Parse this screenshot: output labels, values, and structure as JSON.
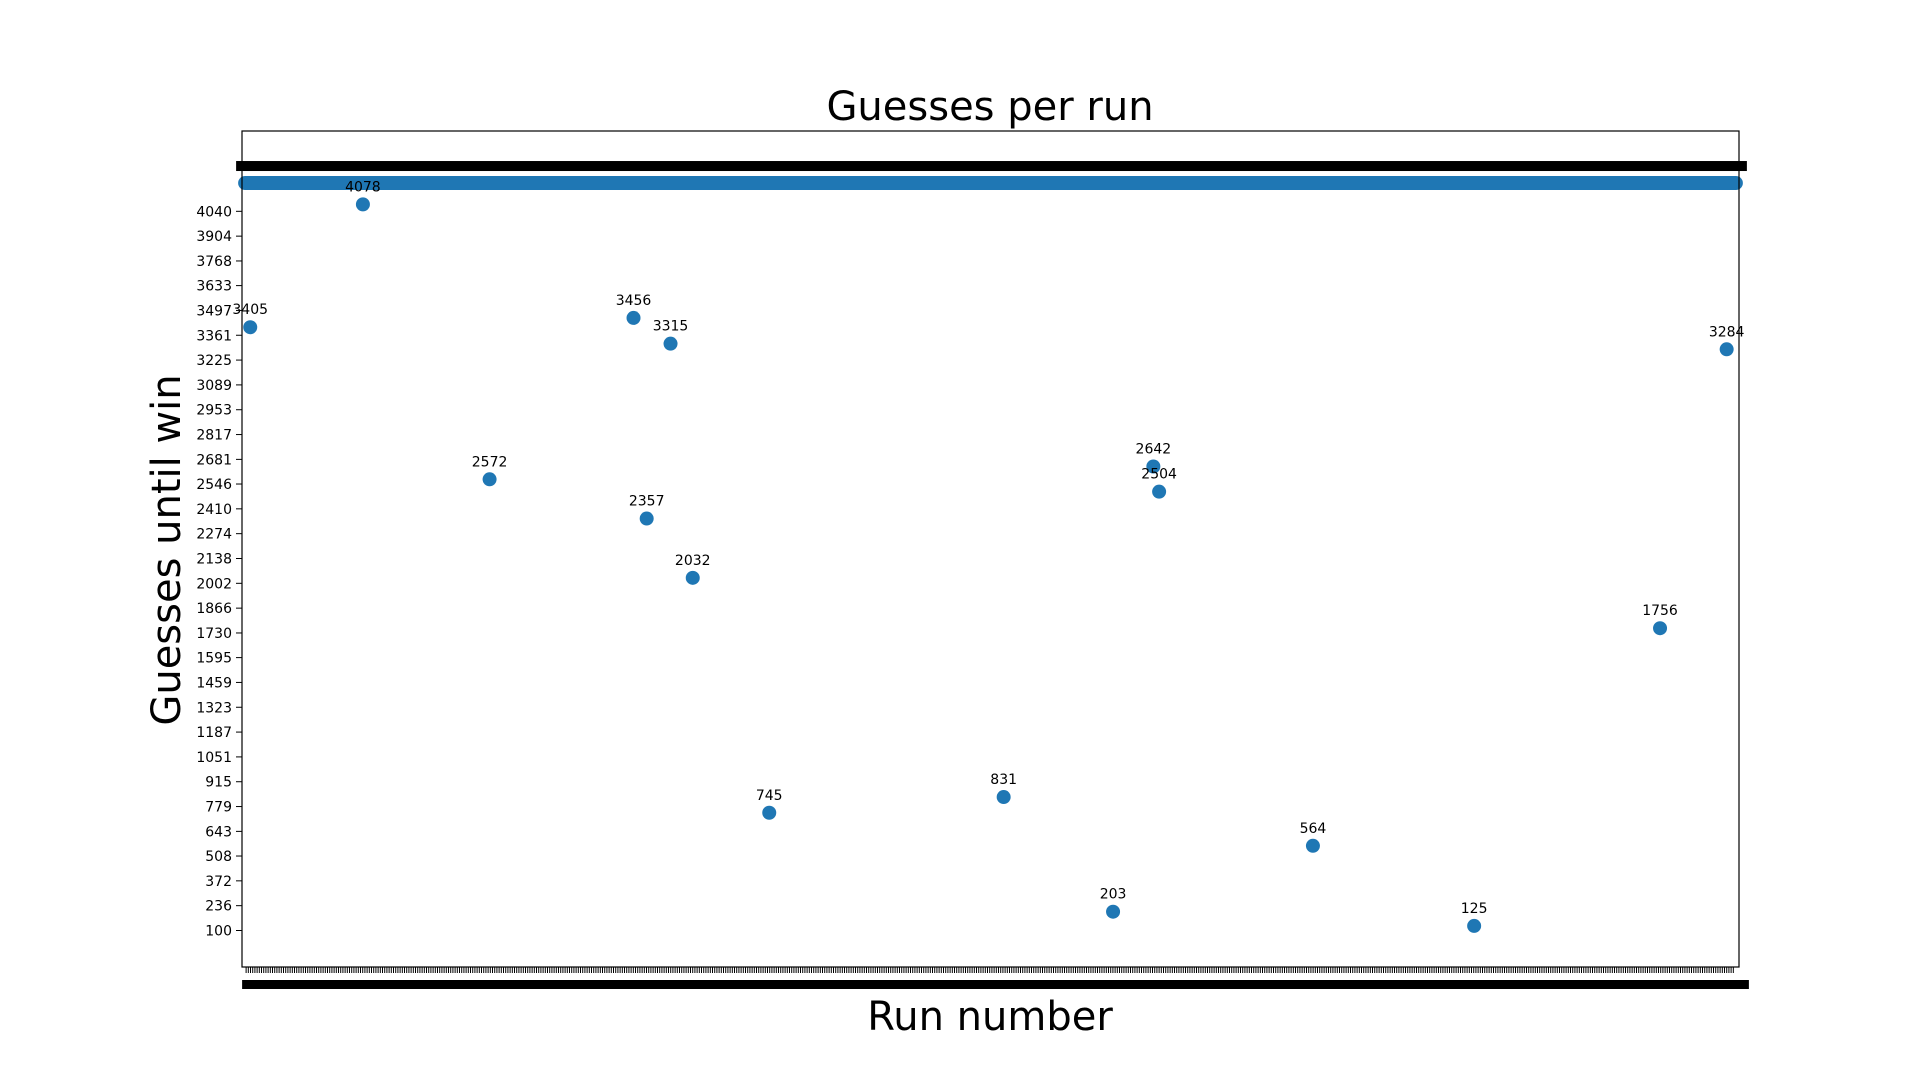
{
  "chart_data": {
    "type": "scatter",
    "title": "Guesses per run",
    "xlabel": "Run number",
    "ylabel": "Guesses until win",
    "marker_color": "#1f77b4",
    "y_ticks": [
      100,
      236,
      372,
      508,
      643,
      779,
      915,
      1051,
      1187,
      1323,
      1459,
      1595,
      1730,
      1866,
      2002,
      2138,
      2274,
      2410,
      2546,
      2681,
      2817,
      2953,
      3089,
      3225,
      3361,
      3497,
      3633,
      3768,
      3904,
      4040
    ],
    "dense_band": {
      "approx_y": 4195,
      "approx_count": 2000,
      "note_label": ""
    },
    "points": [
      {
        "x": 10,
        "y": 3405,
        "label": "3405"
      },
      {
        "x": 147,
        "y": 4078,
        "label": "4078"
      },
      {
        "x": 301,
        "y": 2572,
        "label": "2572"
      },
      {
        "x": 476,
        "y": 3456,
        "label": "3456"
      },
      {
        "x": 492,
        "y": 2357,
        "label": "2357"
      },
      {
        "x": 521,
        "y": 3315,
        "label": "3315"
      },
      {
        "x": 548,
        "y": 2032,
        "label": "2032"
      },
      {
        "x": 641,
        "y": 745,
        "label": "745"
      },
      {
        "x": 926,
        "y": 831,
        "label": "831"
      },
      {
        "x": 1059,
        "y": 203,
        "label": "203"
      },
      {
        "x": 1108,
        "y": 2642,
        "label": "2642"
      },
      {
        "x": 1115,
        "y": 2504,
        "label": "2504"
      },
      {
        "x": 1302,
        "y": 564,
        "label": "564"
      },
      {
        "x": 1498,
        "y": 125,
        "label": "125"
      },
      {
        "x": 1724,
        "y": 1756,
        "label": "1756"
      },
      {
        "x": 1805,
        "y": 3284,
        "label": "3284"
      }
    ],
    "xlim": [
      0,
      1820
    ],
    "ylim": [
      -100,
      4480
    ]
  }
}
